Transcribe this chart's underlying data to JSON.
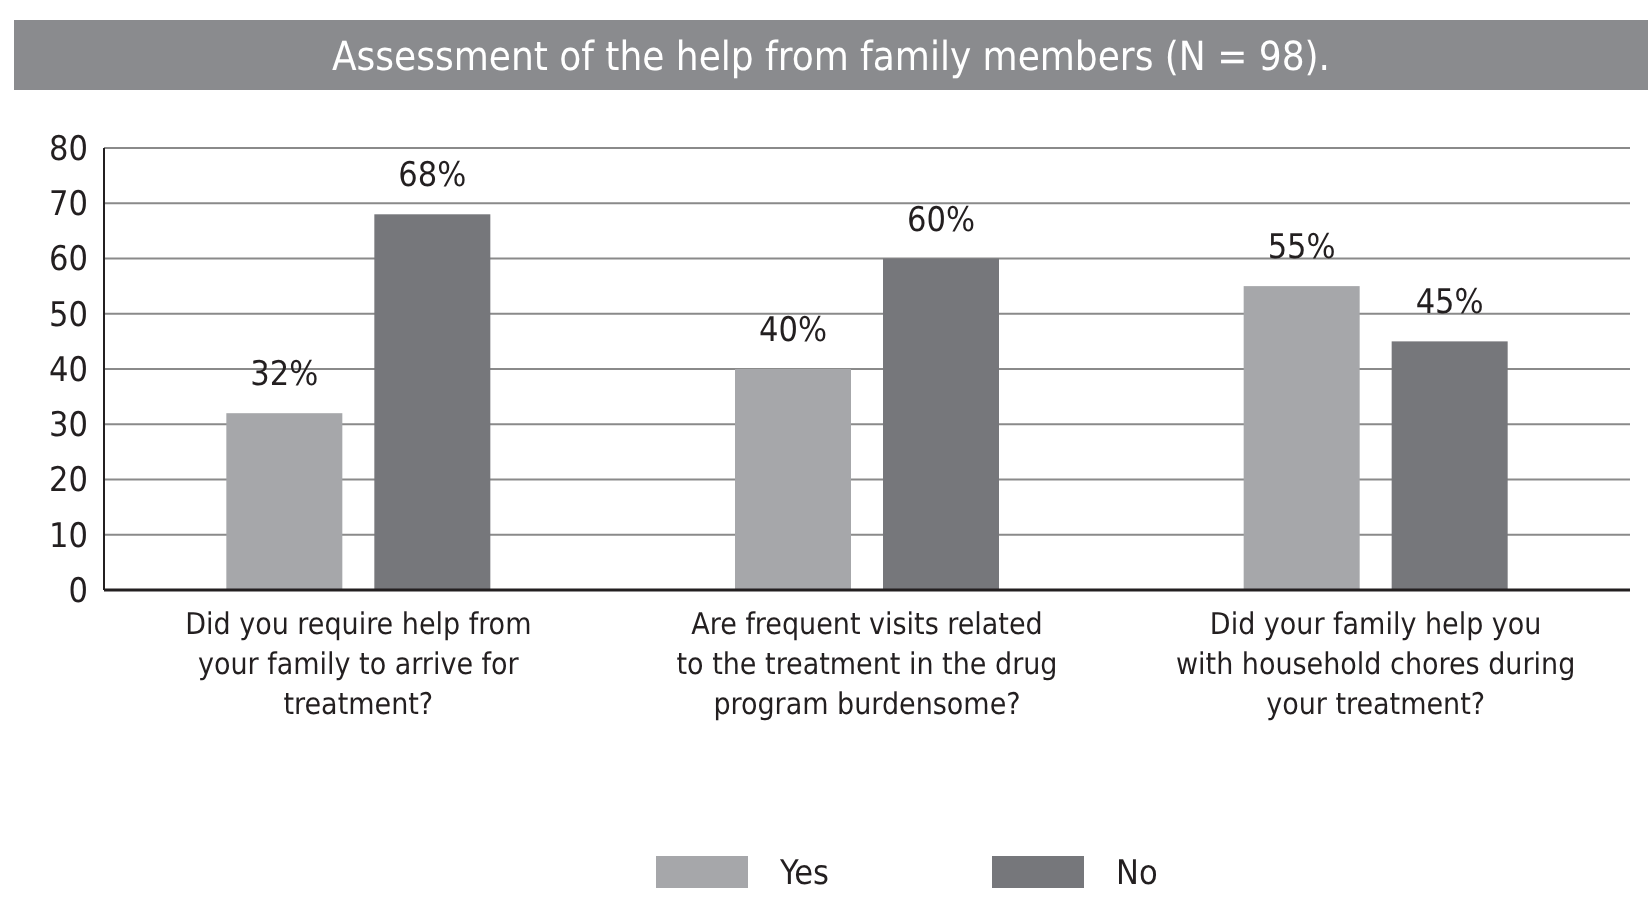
{
  "chart_data": {
    "type": "bar",
    "title": "Assessment of the help from family members (N = 98).",
    "categories": [
      "Did you require help from your family to arrive for treatment?",
      "Are frequent visits related to the treatment in the drug program burdensome?",
      "Did your family help you with household chores during your treatment?"
    ],
    "series": [
      {
        "name": "Yes",
        "color": "#a6a7aa",
        "values": [
          32,
          40,
          55
        ],
        "value_labels": [
          "32%",
          "40%",
          "55%"
        ]
      },
      {
        "name": "No",
        "color": "#76777b",
        "values": [
          68,
          60,
          45
        ],
        "value_labels": [
          "68%",
          "60%",
          "45%"
        ]
      }
    ],
    "ylim": [
      0,
      80
    ],
    "yticks": [
      0,
      10,
      20,
      30,
      40,
      50,
      60,
      70,
      80
    ],
    "grid": "y",
    "legend": "bottom"
  }
}
